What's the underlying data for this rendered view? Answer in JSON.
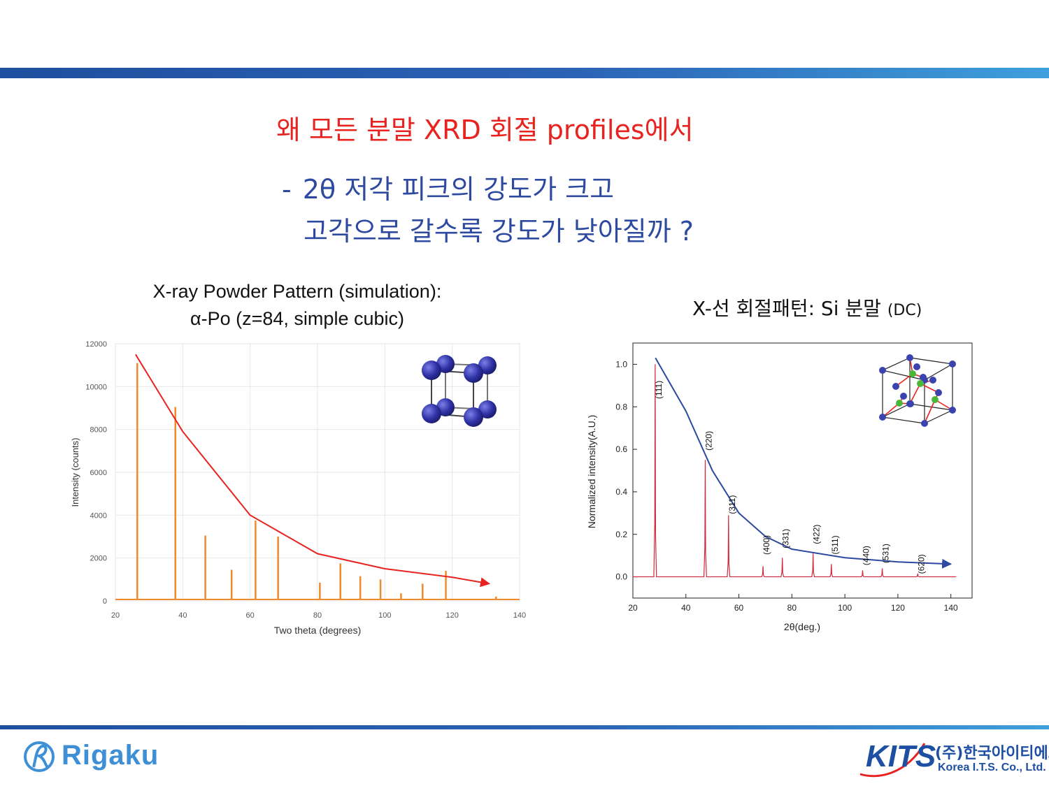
{
  "slide": {
    "title": "왜 모든 분말 XRD 회절 profiles에서",
    "line1_dash": "-",
    "line1": "2θ 저각 피크의 강도가 크고",
    "line2": "고각으로 갈수록 강도가 낮아질까 ?",
    "colors": {
      "title": "#e8231f",
      "subtitle": "#2d49a0",
      "band": "#2b63b5"
    }
  },
  "left_panel": {
    "title_line1": "X-ray Powder Pattern (simulation):",
    "title_line2": "α-Po (z=84, simple cubic)"
  },
  "right_panel": {
    "title_main": "X-선 회절패턴: Si 분말",
    "title_suffix": "(DC)"
  },
  "chart_data": [
    {
      "type": "bar",
      "xlabel": "Two theta (degrees)",
      "ylabel": "Intensity (counts)",
      "xlim": [
        20,
        140
      ],
      "ylim": [
        0,
        12000
      ],
      "x_ticks": [
        20,
        40,
        60,
        80,
        100,
        120,
        140
      ],
      "y_ticks": [
        0,
        2000,
        4000,
        6000,
        8000,
        10000,
        12000
      ],
      "grid": true,
      "peak_color": "#ef8a2e",
      "peaks": [
        {
          "x": 26.5,
          "y": 11100
        },
        {
          "x": 37.8,
          "y": 9050
        },
        {
          "x": 46.7,
          "y": 3050
        },
        {
          "x": 54.5,
          "y": 1450
        },
        {
          "x": 61.6,
          "y": 3750
        },
        {
          "x": 68.3,
          "y": 3000
        },
        {
          "x": 80.7,
          "y": 850
        },
        {
          "x": 86.8,
          "y": 1750
        },
        {
          "x": 92.7,
          "y": 1150
        },
        {
          "x": 98.7,
          "y": 1000
        },
        {
          "x": 104.8,
          "y": 350
        },
        {
          "x": 111.2,
          "y": 800
        },
        {
          "x": 118.1,
          "y": 1400
        },
        {
          "x": 133.0,
          "y": 200
        }
      ],
      "trend_arrow": {
        "color": "#e8231f",
        "points": [
          [
            26,
            11500
          ],
          [
            40,
            7900
          ],
          [
            60,
            4000
          ],
          [
            80,
            2200
          ],
          [
            100,
            1500
          ],
          [
            120,
            1100
          ],
          [
            131,
            800
          ]
        ]
      },
      "inset": "simple-cubic-structure"
    },
    {
      "type": "line",
      "xlabel": "2θ(deg.)",
      "ylabel": "Normalized intensity(A.U.)",
      "xlim": [
        20,
        148
      ],
      "ylim": [
        -0.1,
        1.1
      ],
      "x_ticks": [
        20,
        40,
        60,
        80,
        100,
        120,
        140
      ],
      "y_ticks": [
        0.0,
        0.2,
        0.4,
        0.6,
        0.8,
        1.0
      ],
      "y_tick_labels": [
        "0.0",
        "0.2",
        "0.4",
        "0.6",
        "0.8",
        "1.0"
      ],
      "grid": false,
      "line_color": "#d2283d",
      "peaks": [
        {
          "x": 28.4,
          "y": 1.0,
          "label": "(111)"
        },
        {
          "x": 47.3,
          "y": 0.55,
          "label": "(220)"
        },
        {
          "x": 56.1,
          "y": 0.29,
          "label": "(311)"
        },
        {
          "x": 69.1,
          "y": 0.05,
          "label": "(400)"
        },
        {
          "x": 76.4,
          "y": 0.09,
          "label": "(331)"
        },
        {
          "x": 88.0,
          "y": 0.11,
          "label": "(422)"
        },
        {
          "x": 94.9,
          "y": 0.06,
          "label": "(511)"
        },
        {
          "x": 106.7,
          "y": 0.03,
          "label": "(440)"
        },
        {
          "x": 114.1,
          "y": 0.04,
          "label": "(531)"
        },
        {
          "x": 127.5,
          "y": 0.015,
          "label": "(620)"
        }
      ],
      "trend_arrow": {
        "color": "#2d49a0",
        "points": [
          [
            28.5,
            1.03
          ],
          [
            40,
            0.78
          ],
          [
            50,
            0.5
          ],
          [
            60,
            0.3
          ],
          [
            70,
            0.19
          ],
          [
            80,
            0.13
          ],
          [
            100,
            0.09
          ],
          [
            120,
            0.07
          ],
          [
            140,
            0.06
          ]
        ]
      },
      "inset": "diamond-cubic-structure"
    }
  ],
  "footer": {
    "left_logo": "Rigaku",
    "right_logo": "KITS",
    "company_kr": "(주)한국아이티에스",
    "company_en": "Korea I.T.S. Co., Ltd."
  }
}
